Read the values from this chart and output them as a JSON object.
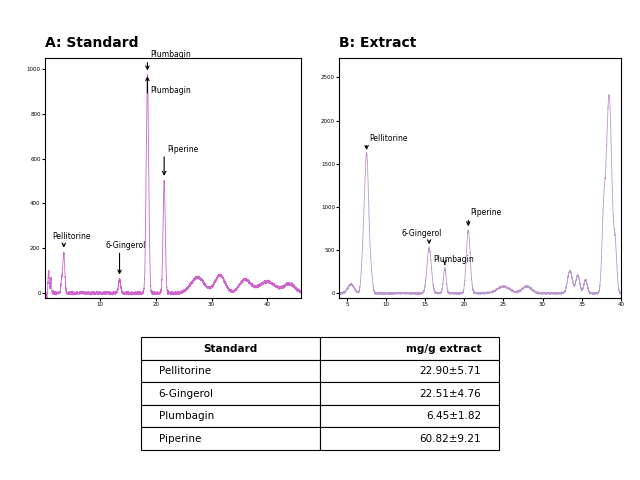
{
  "title_A": "A: Standard",
  "title_B": "B: Extract",
  "line_color_A": "#cc66cc",
  "line_color_B": "#bb99cc",
  "bg_color": "#ffffff",
  "table_data": {
    "headers": [
      "Standard",
      "mg/g extract"
    ],
    "rows": [
      [
        "Pellitorine",
        "22.90±5.71"
      ],
      [
        "6-Gingerol",
        "22.51±4.76"
      ],
      [
        "Plumbagin",
        "6.45±1.82"
      ],
      [
        "Piperine",
        "60.82±9.21"
      ]
    ]
  },
  "peak_label_fontsize": 5.5,
  "title_fontsize": 10,
  "tick_fontsize": 4,
  "yA_max": 1000,
  "yB_max": 2600
}
